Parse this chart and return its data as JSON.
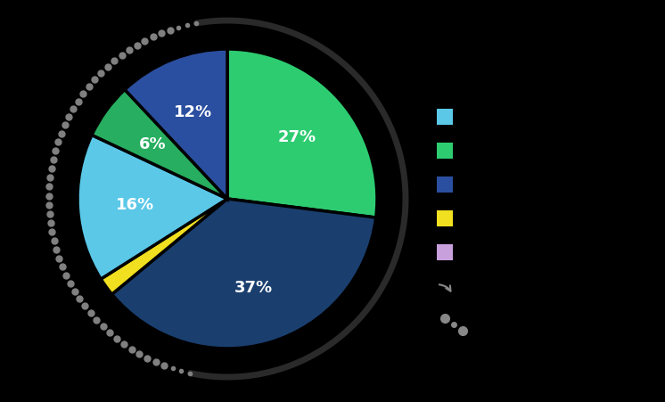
{
  "slices": [
    27,
    37,
    2,
    16,
    6,
    12
  ],
  "labels": [
    "27%",
    "37%",
    "",
    "16%",
    "6%",
    "12%"
  ],
  "colors": [
    "#2ecc71",
    "#1a3f6f",
    "#f0e020",
    "#5bc8e8",
    "#27ae60",
    "#2b4fa0"
  ],
  "background_color": "#000000",
  "text_color": "#ffffff",
  "legend_colors": [
    "#5bc8e8",
    "#2ecc71",
    "#2b4fa0",
    "#f0e020",
    "#c8a0dc"
  ]
}
